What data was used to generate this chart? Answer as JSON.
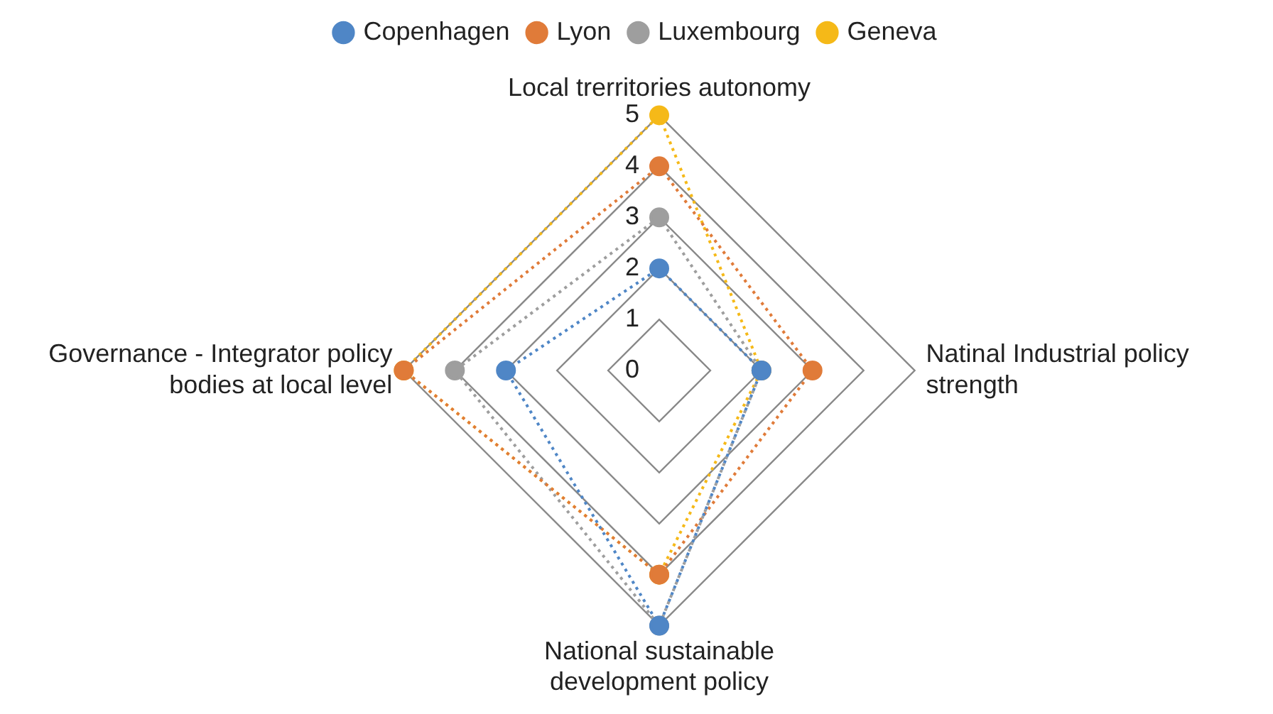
{
  "chart_data": {
    "type": "radar",
    "categories": [
      "Local trerritories autonomy",
      "Natinal Industrial policy strength",
      "National sustainable development policy",
      "Governance - Integrator policy bodies at local level"
    ],
    "series": [
      {
        "name": "Copenhagen",
        "color": "#4f86c6",
        "values": [
          2,
          2,
          5,
          3
        ]
      },
      {
        "name": "Lyon",
        "color": "#e07b39",
        "values": [
          4,
          3,
          4,
          5
        ]
      },
      {
        "name": "Luxembourg",
        "color": "#9e9e9e",
        "values": [
          3,
          2,
          5,
          4
        ]
      },
      {
        "name": "Geneva",
        "color": "#f5b918",
        "values": [
          5,
          2,
          4,
          5
        ]
      }
    ],
    "ylim": [
      0,
      5
    ],
    "yticks": [
      0,
      1,
      2,
      3,
      4,
      5
    ],
    "grid": true,
    "legend": "top",
    "marker": "circle",
    "line_style": "dotted"
  }
}
